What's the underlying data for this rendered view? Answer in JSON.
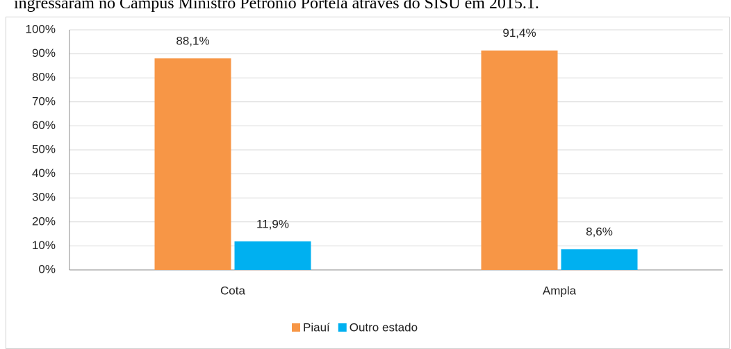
{
  "caption": "ingressaram no Campus Ministro Petrônio Portela através do SISU em 2015.1.",
  "chart_data": {
    "type": "bar",
    "categories": [
      "Cota",
      "Ampla"
    ],
    "series": [
      {
        "name": "Piauí",
        "color": "#f79646",
        "values": [
          88.1,
          91.4
        ],
        "value_labels": [
          "88,1%",
          "91,4%"
        ]
      },
      {
        "name": "Outro estado",
        "color": "#00b0f0",
        "values": [
          11.9,
          8.6
        ],
        "value_labels": [
          "11,9%",
          "8,6%"
        ]
      }
    ],
    "ylim": [
      0,
      100
    ],
    "yticks": [
      {
        "value": 0,
        "label": "0%"
      },
      {
        "value": 10,
        "label": "10%"
      },
      {
        "value": 20,
        "label": "20%"
      },
      {
        "value": 30,
        "label": "30%"
      },
      {
        "value": 40,
        "label": "40%"
      },
      {
        "value": 50,
        "label": "50%"
      },
      {
        "value": 60,
        "label": "60%"
      },
      {
        "value": 70,
        "label": "70%"
      },
      {
        "value": 80,
        "label": "80%"
      },
      {
        "value": 90,
        "label": "90%"
      },
      {
        "value": 100,
        "label": "100%"
      }
    ],
    "grid": true,
    "legend": "bottom"
  }
}
